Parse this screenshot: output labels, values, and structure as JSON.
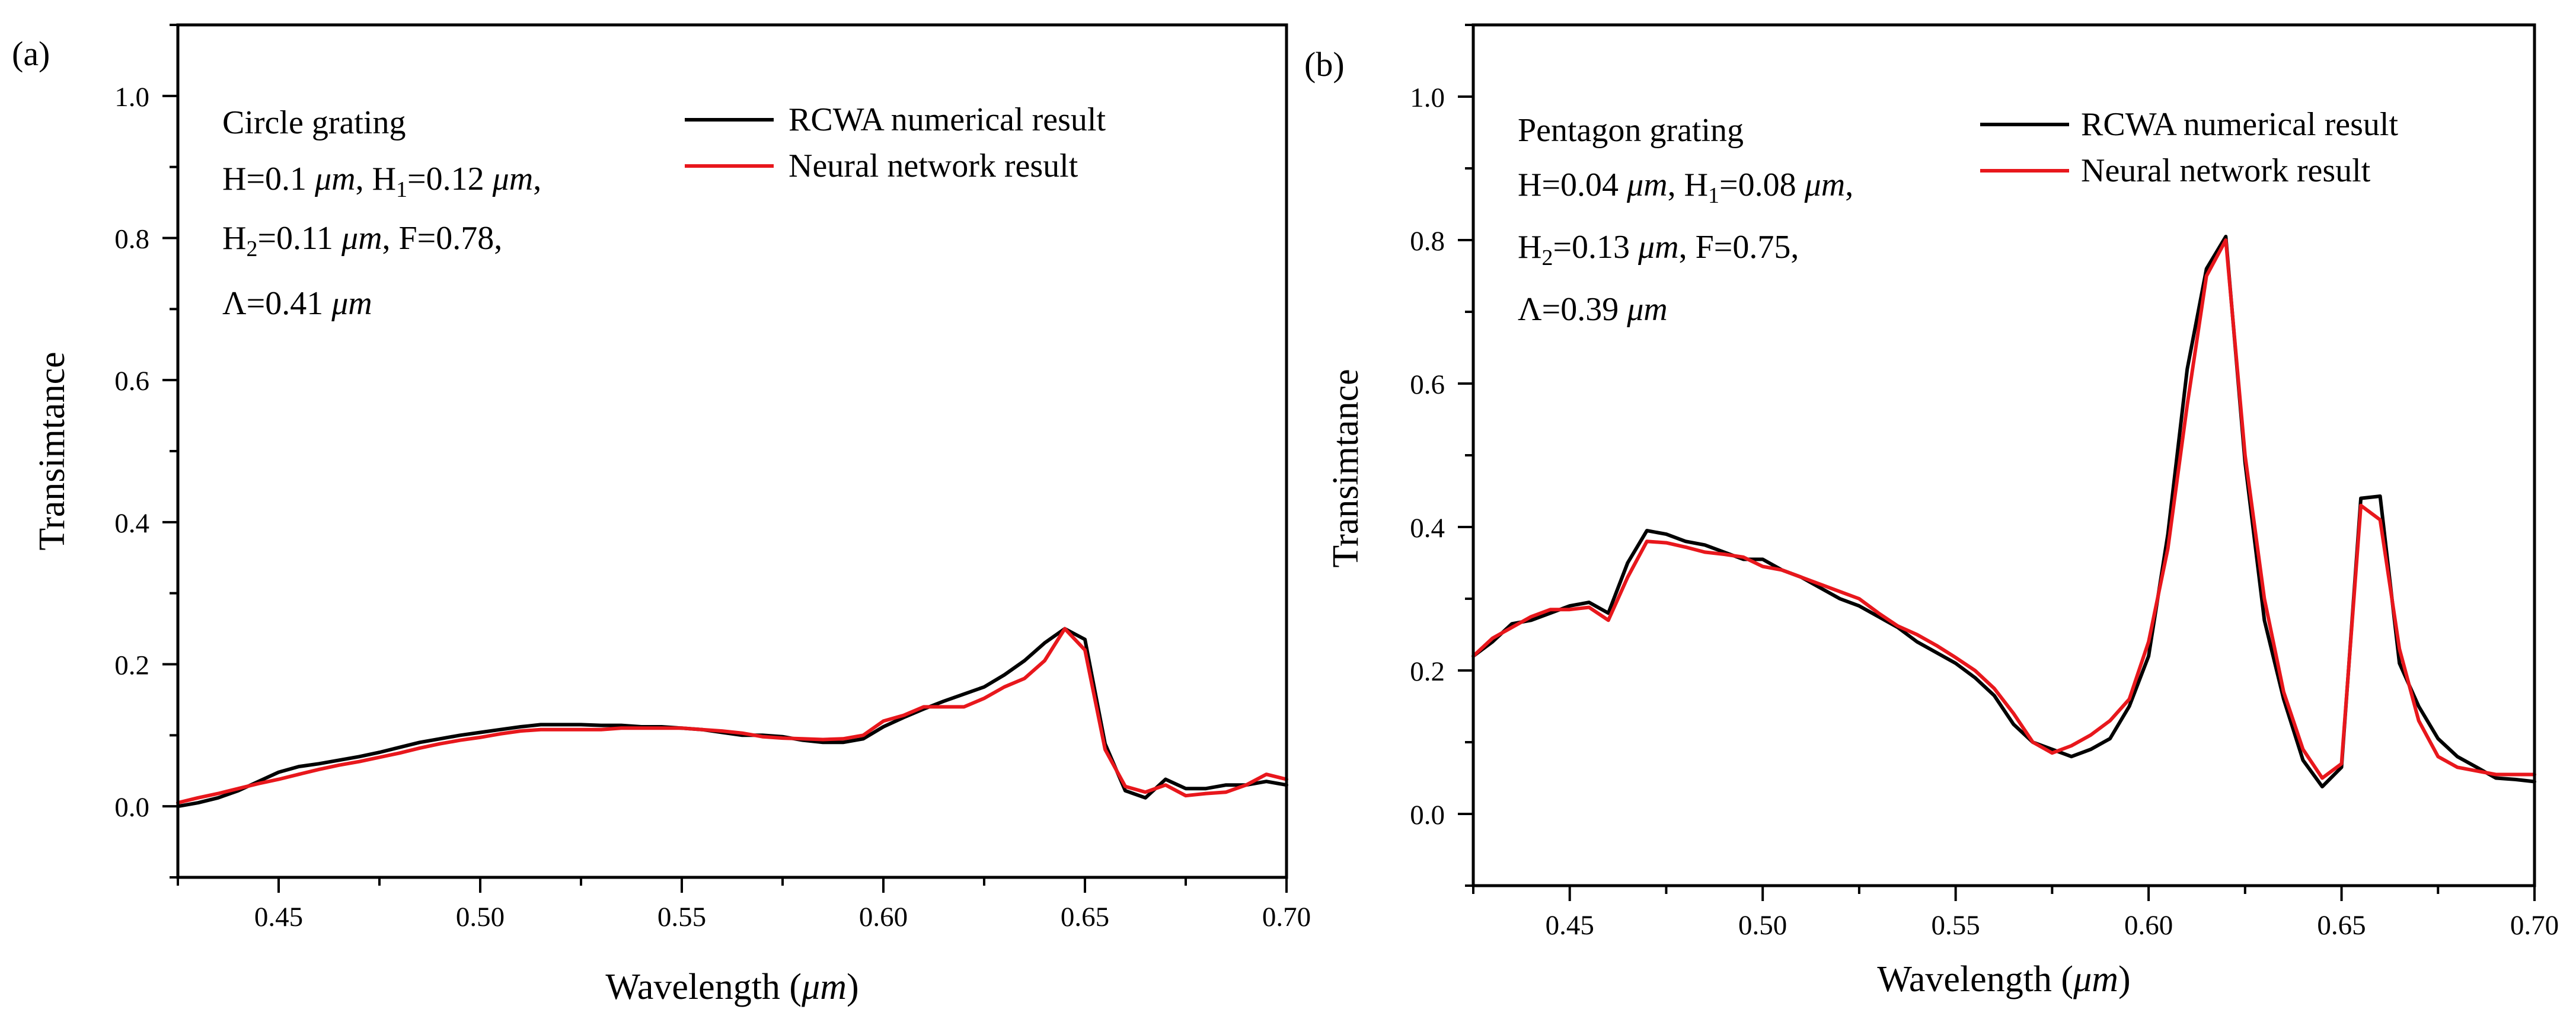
{
  "figure": {
    "legend": {
      "numerical": "RCWA numerical result",
      "network": "Neural network result"
    },
    "colors": {
      "numerical": "#000000",
      "network": "#e8171c"
    }
  },
  "chart_data": [
    {
      "type": "line",
      "panel_label": "(a)",
      "title": "",
      "xlabel": "Wavelength (μm)",
      "xlabel_main": "Wavelength (",
      "xlabel_unit": "μm",
      "xlabel_close": ")",
      "ylabel": "Transimtance",
      "xlim": [
        0.425,
        0.7
      ],
      "ylim": [
        -0.1,
        1.1
      ],
      "xticks": [
        0.45,
        0.5,
        0.55,
        0.6,
        0.65,
        0.7
      ],
      "xtick_labels": [
        "0.45",
        "0.50",
        "0.55",
        "0.60",
        "0.65",
        "0.70"
      ],
      "yticks": [
        0.0,
        0.2,
        0.4,
        0.6,
        0.8,
        1.0
      ],
      "ytick_labels": [
        "0.0",
        "0.2",
        "0.4",
        "0.6",
        "0.8",
        "1.0"
      ],
      "annotation": {
        "title": "Circle grating",
        "line1": [
          {
            "t": "H=0.1 "
          },
          {
            "t": "μm",
            "i": true
          },
          {
            "t": ", H"
          },
          {
            "t": "1",
            "s": true
          },
          {
            "t": "=0.12 "
          },
          {
            "t": "μm",
            "i": true
          },
          {
            "t": ","
          }
        ],
        "line2": [
          {
            "t": "H"
          },
          {
            "t": "2",
            "s": true
          },
          {
            "t": "=0.11 "
          },
          {
            "t": "μm",
            "i": true
          },
          {
            "t": ", F=0.78,"
          }
        ],
        "line3": [
          {
            "t": "Λ=0.41 "
          },
          {
            "t": "μm",
            "i": true
          }
        ]
      },
      "series": [
        {
          "name": "RCWA numerical result",
          "x": [
            0.425,
            0.43,
            0.435,
            0.44,
            0.445,
            0.45,
            0.455,
            0.46,
            0.465,
            0.47,
            0.475,
            0.48,
            0.485,
            0.49,
            0.495,
            0.5,
            0.505,
            0.51,
            0.515,
            0.52,
            0.525,
            0.53,
            0.535,
            0.54,
            0.545,
            0.55,
            0.555,
            0.56,
            0.565,
            0.57,
            0.575,
            0.58,
            0.585,
            0.59,
            0.595,
            0.6,
            0.605,
            0.61,
            0.615,
            0.62,
            0.625,
            0.63,
            0.635,
            0.64,
            0.645,
            0.65,
            0.655,
            0.66,
            0.665,
            0.67,
            0.675,
            0.68,
            0.685,
            0.69,
            0.695,
            0.7
          ],
          "y": [
            0.0,
            0.005,
            0.012,
            0.022,
            0.035,
            0.048,
            0.056,
            0.06,
            0.065,
            0.07,
            0.076,
            0.083,
            0.09,
            0.095,
            0.1,
            0.104,
            0.108,
            0.112,
            0.115,
            0.115,
            0.115,
            0.114,
            0.114,
            0.112,
            0.112,
            0.11,
            0.108,
            0.104,
            0.1,
            0.1,
            0.098,
            0.093,
            0.09,
            0.09,
            0.095,
            0.112,
            0.125,
            0.137,
            0.148,
            0.158,
            0.168,
            0.185,
            0.205,
            0.23,
            0.25,
            0.235,
            0.088,
            0.022,
            0.012,
            0.038,
            0.025,
            0.025,
            0.03,
            0.03,
            0.035,
            0.03
          ]
        },
        {
          "name": "Neural network result",
          "x": [
            0.425,
            0.43,
            0.435,
            0.44,
            0.445,
            0.45,
            0.455,
            0.46,
            0.465,
            0.47,
            0.475,
            0.48,
            0.485,
            0.49,
            0.495,
            0.5,
            0.505,
            0.51,
            0.515,
            0.52,
            0.525,
            0.53,
            0.535,
            0.54,
            0.545,
            0.55,
            0.555,
            0.56,
            0.565,
            0.57,
            0.575,
            0.58,
            0.585,
            0.59,
            0.595,
            0.6,
            0.605,
            0.61,
            0.615,
            0.62,
            0.625,
            0.63,
            0.635,
            0.64,
            0.645,
            0.65,
            0.655,
            0.66,
            0.665,
            0.67,
            0.675,
            0.68,
            0.685,
            0.69,
            0.695,
            0.7
          ],
          "y": [
            0.005,
            0.012,
            0.018,
            0.025,
            0.032,
            0.038,
            0.045,
            0.052,
            0.058,
            0.063,
            0.069,
            0.075,
            0.082,
            0.088,
            0.093,
            0.097,
            0.102,
            0.106,
            0.108,
            0.108,
            0.108,
            0.108,
            0.11,
            0.11,
            0.11,
            0.11,
            0.108,
            0.106,
            0.103,
            0.098,
            0.096,
            0.095,
            0.094,
            0.095,
            0.1,
            0.12,
            0.128,
            0.14,
            0.14,
            0.14,
            0.152,
            0.168,
            0.18,
            0.205,
            0.25,
            0.22,
            0.08,
            0.028,
            0.02,
            0.03,
            0.015,
            0.018,
            0.02,
            0.03,
            0.045,
            0.038
          ]
        }
      ]
    },
    {
      "type": "line",
      "panel_label": "(b)",
      "title": "",
      "xlabel": "Wavelength (μm)",
      "xlabel_main": "Wavelength (",
      "xlabel_unit": "μm",
      "xlabel_close": ")",
      "ylabel": "Transimtance",
      "xlim": [
        0.425,
        0.7
      ],
      "ylim": [
        -0.1,
        1.1
      ],
      "xticks": [
        0.45,
        0.5,
        0.55,
        0.6,
        0.65,
        0.7
      ],
      "xtick_labels": [
        "0.45",
        "0.50",
        "0.55",
        "0.60",
        "0.65",
        "0.70"
      ],
      "yticks": [
        0.0,
        0.2,
        0.4,
        0.6,
        0.8,
        1.0
      ],
      "ytick_labels": [
        "0.0",
        "0.2",
        "0.4",
        "0.6",
        "0.8",
        "1.0"
      ],
      "annotation": {
        "title": "Pentagon grating",
        "line1": [
          {
            "t": "H=0.04 "
          },
          {
            "t": "μm",
            "i": true
          },
          {
            "t": ", H"
          },
          {
            "t": "1",
            "s": true
          },
          {
            "t": "=0.08 "
          },
          {
            "t": "μm",
            "i": true
          },
          {
            "t": ","
          }
        ],
        "line2": [
          {
            "t": "H"
          },
          {
            "t": "2",
            "s": true
          },
          {
            "t": "=0.13 "
          },
          {
            "t": "μm",
            "i": true
          },
          {
            "t": ", F=0.75,"
          }
        ],
        "line3": [
          {
            "t": "Λ=0.39 "
          },
          {
            "t": "μm",
            "i": true
          }
        ]
      },
      "series": [
        {
          "name": "RCWA numerical result",
          "x": [
            0.425,
            0.43,
            0.435,
            0.44,
            0.445,
            0.45,
            0.455,
            0.46,
            0.465,
            0.47,
            0.475,
            0.48,
            0.485,
            0.49,
            0.495,
            0.5,
            0.505,
            0.51,
            0.515,
            0.52,
            0.525,
            0.53,
            0.535,
            0.54,
            0.545,
            0.55,
            0.555,
            0.56,
            0.565,
            0.57,
            0.575,
            0.58,
            0.585,
            0.59,
            0.595,
            0.6,
            0.605,
            0.61,
            0.615,
            0.62,
            0.625,
            0.63,
            0.635,
            0.64,
            0.645,
            0.65,
            0.655,
            0.66,
            0.665,
            0.67,
            0.675,
            0.68,
            0.685,
            0.69,
            0.695,
            0.7
          ],
          "y": [
            0.22,
            0.24,
            0.265,
            0.27,
            0.28,
            0.29,
            0.295,
            0.28,
            0.35,
            0.395,
            0.39,
            0.38,
            0.375,
            0.365,
            0.355,
            0.355,
            0.34,
            0.33,
            0.315,
            0.3,
            0.29,
            0.275,
            0.26,
            0.24,
            0.225,
            0.21,
            0.19,
            0.165,
            0.125,
            0.1,
            0.09,
            0.08,
            0.09,
            0.105,
            0.15,
            0.22,
            0.39,
            0.62,
            0.76,
            0.805,
            0.49,
            0.27,
            0.16,
            0.075,
            0.038,
            0.065,
            0.44,
            0.443,
            0.21,
            0.15,
            0.105,
            0.08,
            0.065,
            0.05,
            0.048,
            0.045
          ]
        },
        {
          "name": "Neural network result",
          "x": [
            0.425,
            0.43,
            0.435,
            0.44,
            0.445,
            0.45,
            0.455,
            0.46,
            0.465,
            0.47,
            0.475,
            0.48,
            0.485,
            0.49,
            0.495,
            0.5,
            0.505,
            0.51,
            0.515,
            0.52,
            0.525,
            0.53,
            0.535,
            0.54,
            0.545,
            0.55,
            0.555,
            0.56,
            0.565,
            0.57,
            0.575,
            0.58,
            0.585,
            0.59,
            0.595,
            0.6,
            0.605,
            0.61,
            0.615,
            0.62,
            0.625,
            0.63,
            0.635,
            0.64,
            0.645,
            0.65,
            0.655,
            0.66,
            0.665,
            0.67,
            0.675,
            0.68,
            0.685,
            0.69,
            0.695,
            0.7
          ],
          "y": [
            0.22,
            0.245,
            0.26,
            0.275,
            0.285,
            0.285,
            0.288,
            0.27,
            0.33,
            0.38,
            0.378,
            0.372,
            0.365,
            0.362,
            0.358,
            0.345,
            0.34,
            0.33,
            0.32,
            0.31,
            0.3,
            0.28,
            0.262,
            0.25,
            0.235,
            0.218,
            0.2,
            0.175,
            0.14,
            0.1,
            0.085,
            0.095,
            0.11,
            0.13,
            0.16,
            0.24,
            0.37,
            0.57,
            0.75,
            0.8,
            0.5,
            0.3,
            0.17,
            0.09,
            0.05,
            0.07,
            0.43,
            0.41,
            0.23,
            0.13,
            0.08,
            0.065,
            0.06,
            0.055,
            0.055,
            0.055
          ]
        }
      ]
    }
  ]
}
